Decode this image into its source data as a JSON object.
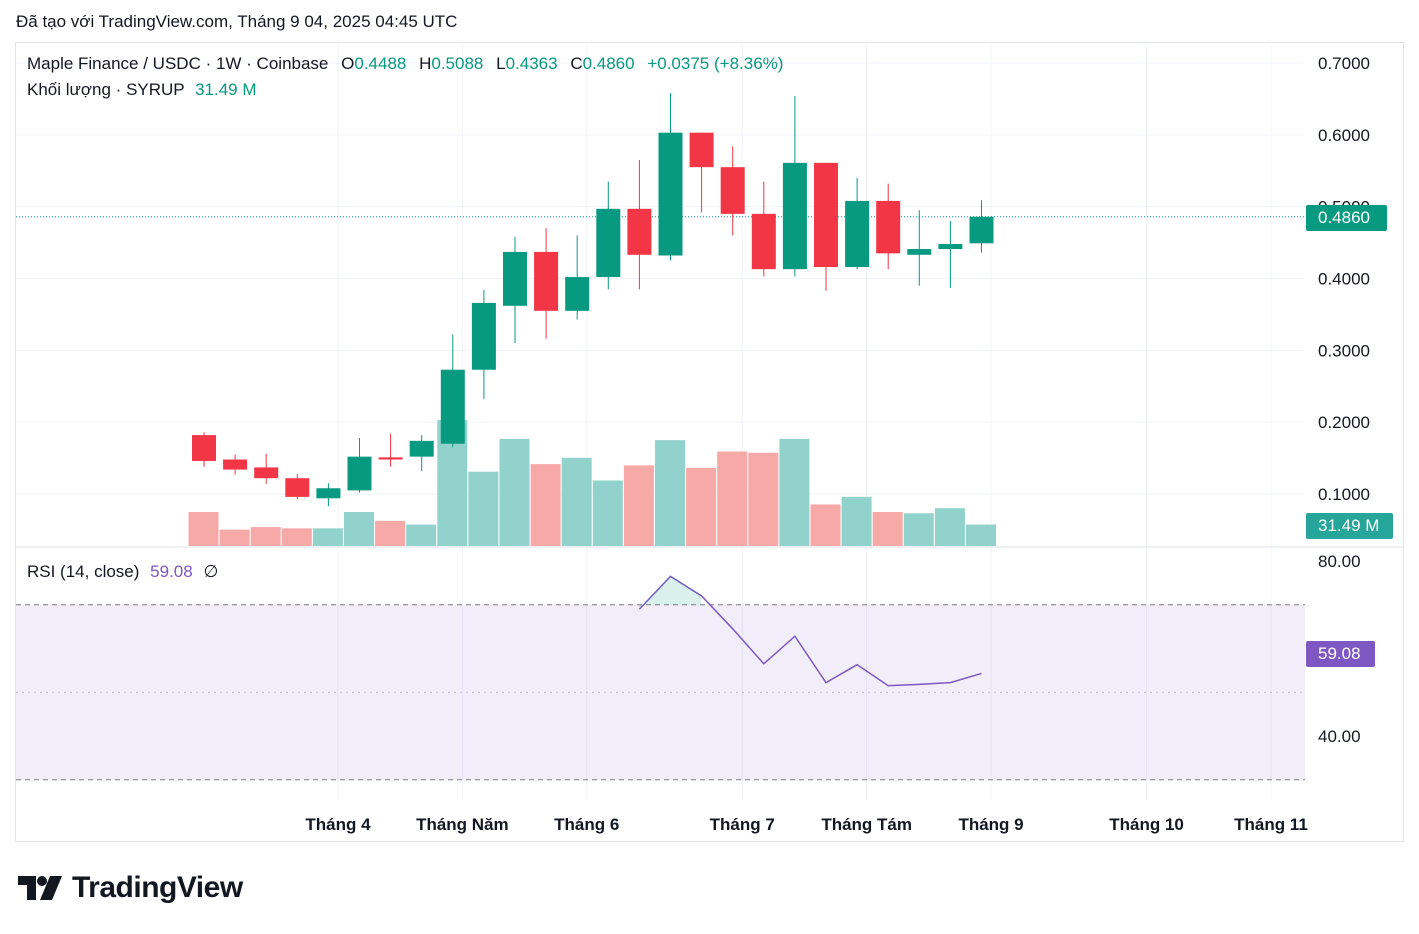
{
  "created_text": "Đã tạo với TradingView.com, Tháng 9 04, 2025 04:45 UTC",
  "legend": {
    "title": "Maple Finance / USDC · 1W · Coinbase",
    "o_label": "O",
    "o_value": "0.4488",
    "h_label": "H",
    "h_value": "0.5088",
    "l_label": "L",
    "l_value": "0.4363",
    "c_label": "C",
    "c_value": "0.4860",
    "change": "+0.0375 (+8.36%)",
    "volume_label": "Khối lượng · SYRUP",
    "volume_value": "31.49 M",
    "rsi_label": "RSI (14, close)",
    "rsi_value": "59.08",
    "rsi_symbol": "∅"
  },
  "price_tag": "0.4860",
  "volume_tag": "31.49 M",
  "rsi_tag": "59.08",
  "logo_text": "TradingView",
  "colors": {
    "up": "#089981",
    "down": "#f23645",
    "vol_up": "#92d2cc",
    "vol_down": "#f7a9a7",
    "rsi": "#7e57c2"
  },
  "chart_data": {
    "type": "candlestick",
    "title": "Maple Finance / USDC · 1W · Coinbase",
    "y_axis_ticks": [
      "0.7000",
      "0.6000",
      "0.5000",
      "0.4000",
      "0.3000",
      "0.2000",
      "0.1000"
    ],
    "y_axis_values": [
      0.7,
      0.6,
      0.5,
      0.4,
      0.3,
      0.2,
      0.1
    ],
    "ylim": [
      0.03,
      0.73
    ],
    "x_axis_ticks": [
      "Tháng 4",
      "Tháng Năm",
      "Tháng 6",
      "Tháng 7",
      "Tháng Tám",
      "Tháng 9",
      "Tháng 10",
      "Tháng 11"
    ],
    "x_axis_tick_index": [
      4.5,
      8.5,
      12.5,
      17.5,
      21.5,
      25.5,
      30.5,
      34.5
    ],
    "last_price": 0.486,
    "candles": [
      {
        "o": 0.182,
        "h": 0.186,
        "l": 0.138,
        "c": 0.146
      },
      {
        "o": 0.148,
        "h": 0.155,
        "l": 0.127,
        "c": 0.134
      },
      {
        "o": 0.137,
        "h": 0.156,
        "l": 0.114,
        "c": 0.122
      },
      {
        "o": 0.122,
        "h": 0.128,
        "l": 0.093,
        "c": 0.096
      },
      {
        "o": 0.094,
        "h": 0.115,
        "l": 0.083,
        "c": 0.108
      },
      {
        "o": 0.105,
        "h": 0.178,
        "l": 0.102,
        "c": 0.152
      },
      {
        "o": 0.151,
        "h": 0.184,
        "l": 0.138,
        "c": 0.148
      },
      {
        "o": 0.152,
        "h": 0.182,
        "l": 0.132,
        "c": 0.174
      },
      {
        "o": 0.17,
        "h": 0.322,
        "l": 0.165,
        "c": 0.273
      },
      {
        "o": 0.273,
        "h": 0.384,
        "l": 0.232,
        "c": 0.366
      },
      {
        "o": 0.362,
        "h": 0.458,
        "l": 0.31,
        "c": 0.437
      },
      {
        "o": 0.437,
        "h": 0.47,
        "l": 0.316,
        "c": 0.355
      },
      {
        "o": 0.355,
        "h": 0.46,
        "l": 0.343,
        "c": 0.402
      },
      {
        "o": 0.402,
        "h": 0.535,
        "l": 0.385,
        "c": 0.497
      },
      {
        "o": 0.497,
        "h": 0.565,
        "l": 0.385,
        "c": 0.433
      },
      {
        "o": 0.432,
        "h": 0.658,
        "l": 0.425,
        "c": 0.603
      },
      {
        "o": 0.603,
        "h": 0.603,
        "l": 0.492,
        "c": 0.555
      },
      {
        "o": 0.555,
        "h": 0.584,
        "l": 0.46,
        "c": 0.49
      },
      {
        "o": 0.49,
        "h": 0.535,
        "l": 0.403,
        "c": 0.413
      },
      {
        "o": 0.413,
        "h": 0.654,
        "l": 0.403,
        "c": 0.561
      },
      {
        "o": 0.561,
        "h": 0.561,
        "l": 0.383,
        "c": 0.416
      },
      {
        "o": 0.416,
        "h": 0.54,
        "l": 0.413,
        "c": 0.508
      },
      {
        "o": 0.508,
        "h": 0.532,
        "l": 0.413,
        "c": 0.435
      },
      {
        "o": 0.433,
        "h": 0.495,
        "l": 0.39,
        "c": 0.441
      },
      {
        "o": 0.441,
        "h": 0.48,
        "l": 0.387,
        "c": 0.448
      },
      {
        "o": 0.449,
        "h": 0.509,
        "l": 0.436,
        "c": 0.486
      }
    ],
    "volume": {
      "label": "Khối lượng · SYRUP",
      "last": "31.49 M",
      "values": [
        0.27,
        0.13,
        0.15,
        0.14,
        0.14,
        0.27,
        0.2,
        0.17,
        1.0,
        0.59,
        0.85,
        0.65,
        0.7,
        0.52,
        0.64,
        0.84,
        0.62,
        0.75,
        0.74,
        0.85,
        0.33,
        0.39,
        0.27,
        0.26,
        0.3,
        0.17
      ]
    },
    "rsi": {
      "label": "RSI (14, close)",
      "period": 14,
      "last": 59.08,
      "y_axis_ticks": [
        "80.00",
        "40.00"
      ],
      "y_axis_values": [
        80,
        40
      ],
      "band": [
        70,
        30
      ],
      "ylim": [
        28,
        84
      ],
      "start_index": 14,
      "values": [
        69.0,
        76.5,
        72.0,
        64.5,
        56.5,
        62.8,
        52.2,
        56.3,
        51.5,
        51.8,
        52.2,
        54.3
      ]
    }
  }
}
